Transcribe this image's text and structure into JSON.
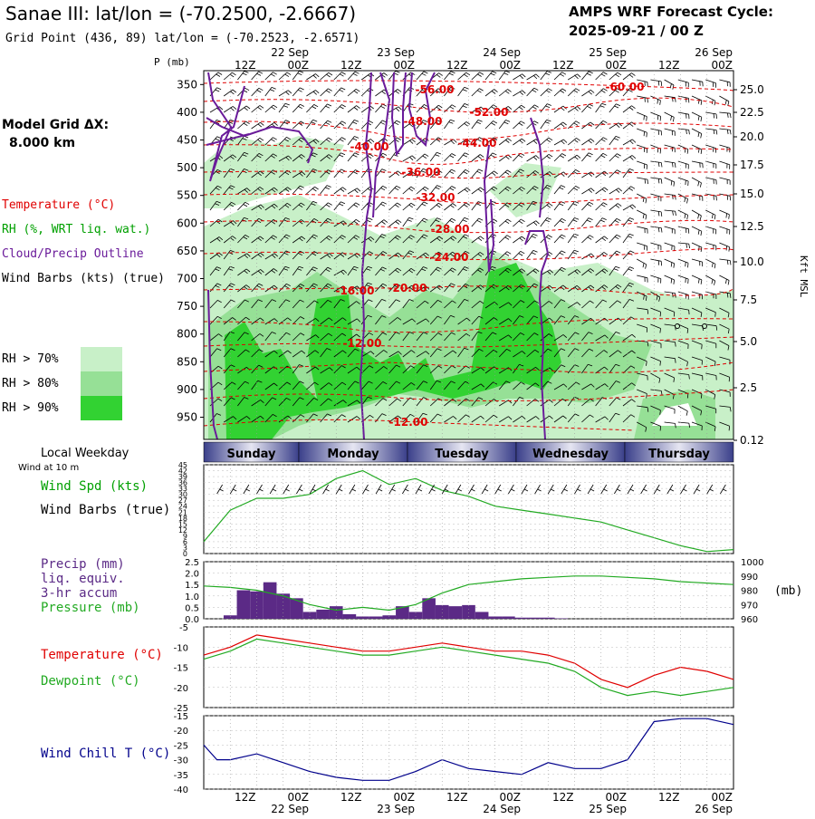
{
  "header": {
    "title": "Sanae III:  lat/lon = (-70.2500, -2.6667)",
    "subtitle": "Grid Point (436, 89) lat/lon = (-70.2523, -2.6571)",
    "cycle_label": "AMPS WRF Forecast Cycle:",
    "cycle_value": "2025-09-21 / 00  Z"
  },
  "legend": {
    "p_unit": "P (mb)",
    "model_grid_1": "Model Grid ΔX:",
    "model_grid_2": "8.000 km",
    "temperature": "Temperature (°C)",
    "rh": "RH (%, WRT liq. wat.)",
    "cloud": "Cloud/Precip Outline",
    "wind_barbs": "Wind Barbs (kts) (true)",
    "rh70": "RH > 70%",
    "rh80": "RH > 80%",
    "rh90": "RH > 90%",
    "kft": "Kft MSL",
    "local_weekday": "Local Weekday",
    "wind10m": "Wind at 10 m",
    "wind_spd": "Wind Spd (kts)",
    "wind_barbs2": "Wind Barbs (true)",
    "precip1": "Precip (mm)",
    "precip2": "liq. equiv.",
    "precip3": "3-hr accum",
    "pressure": "Pressure (mb)",
    "pressure_unit": "(mb)",
    "temp2": "Temperature (°C)",
    "dewpoint": "Dewpoint (°C)",
    "windchill": "Wind Chill T (°C)"
  },
  "colors": {
    "temperature": "#e00000",
    "rh": "#00a000",
    "cloud": "#6a1b9a",
    "precip": "#5b2a86",
    "pressure": "#22aa22",
    "windchill": "#00008b",
    "rh70": "#c8f0c8",
    "rh80": "#96e096",
    "rh90": "#32d232",
    "weekday_dark": "#3a3f8a",
    "weekday_light": "#e6e6f2"
  },
  "time_axis": {
    "top_hours": [
      "12Z",
      "00Z",
      "12Z",
      "00Z",
      "12Z",
      "00Z",
      "12Z",
      "00Z",
      "12Z",
      "00Z"
    ],
    "top_dates": [
      "22 Sep",
      "23 Sep",
      "24 Sep",
      "25 Sep",
      "26 Sep"
    ],
    "bottom_hours": [
      "12Z",
      "00Z",
      "12Z",
      "00Z",
      "12Z",
      "00Z",
      "12Z",
      "00Z",
      "12Z",
      "00Z"
    ],
    "bottom_dates": [
      "22 Sep",
      "23 Sep",
      "24 Sep",
      "25 Sep",
      "26 Sep"
    ],
    "weekdays": [
      "Sunday",
      "Monday",
      "Tuesday",
      "Wednesday",
      "Thursday"
    ]
  },
  "chart_data": [
    {
      "type": "heatmap",
      "pressure_ticks": [
        "350",
        "400",
        "450",
        "500",
        "550",
        "600",
        "650",
        "700",
        "750",
        "800",
        "850",
        "900",
        "950"
      ],
      "height_ticks": [
        "25.0",
        "22.5",
        "20.0",
        "17.5",
        "15.0",
        "12.5",
        "10.0",
        "7.5",
        "5.0",
        "2.5",
        "0.12"
      ],
      "temperature_labels": [
        "-56.00",
        "-60.00",
        "-48.00",
        "-52.00",
        "-40.00",
        "-44.00",
        "-36.00",
        "-32.00",
        "-28.00",
        "-24.00",
        "-20.00",
        "-16.00",
        "-12.00",
        "-12.00"
      ]
    },
    {
      "type": "line",
      "name": "wind_speed",
      "y_ticks": [
        "45",
        "42",
        "39",
        "36",
        "33",
        "30",
        "27",
        "24",
        "21",
        "18",
        "15",
        "12",
        "9",
        "6",
        "3",
        "0"
      ],
      "ylim": [
        0,
        45
      ],
      "x_hours": [
        0,
        6,
        12,
        18,
        24,
        30,
        36,
        42,
        48,
        54,
        60,
        66,
        72,
        78,
        84,
        90,
        96,
        102,
        108,
        114,
        120
      ],
      "values": [
        6,
        22,
        28,
        28,
        30,
        38,
        42,
        35,
        38,
        32,
        29,
        24,
        22,
        20,
        18,
        16,
        12,
        8,
        4,
        1,
        2
      ]
    },
    {
      "type": "bar",
      "name": "precip",
      "y_ticks": [
        "2.5",
        "2.0",
        "1.5",
        "1.0",
        "0.5",
        "0.0"
      ],
      "ylim": [
        0,
        2.5
      ],
      "x_hours": [
        6,
        9,
        12,
        15,
        18,
        21,
        24,
        27,
        30,
        33,
        36,
        39,
        42,
        45,
        48,
        51,
        54,
        57,
        60,
        63,
        66,
        69,
        72,
        75,
        78,
        81
      ],
      "values": [
        0.15,
        1.25,
        1.2,
        1.6,
        1.1,
        0.9,
        0.3,
        0.4,
        0.55,
        0.2,
        0.1,
        0.1,
        0.15,
        0.55,
        0.3,
        0.9,
        0.6,
        0.55,
        0.6,
        0.3,
        0.1,
        0.1,
        0.05,
        0.05,
        0.05,
        0.02
      ],
      "pressure_ticks": [
        "1000",
        "990",
        "980",
        "970",
        "960"
      ],
      "pressure_lim": [
        960,
        1000
      ],
      "pressure_hours": [
        0,
        6,
        12,
        18,
        24,
        30,
        36,
        42,
        48,
        54,
        60,
        66,
        72,
        78,
        84,
        90,
        96,
        102,
        108,
        114,
        120
      ],
      "pressure_values": [
        983,
        982,
        980,
        976,
        970,
        966,
        968,
        966,
        970,
        978,
        984,
        986,
        988,
        989,
        990,
        990,
        989,
        988,
        986,
        985,
        984
      ]
    },
    {
      "type": "line",
      "name": "temperature_dewpoint",
      "y_ticks": [
        "-5",
        "-10",
        "-15",
        "-20",
        "-25"
      ],
      "ylim": [
        -25,
        -5
      ],
      "x_hours": [
        0,
        6,
        12,
        18,
        24,
        30,
        36,
        42,
        48,
        54,
        60,
        66,
        72,
        78,
        84,
        90,
        96,
        102,
        108,
        114,
        120
      ],
      "temperature": [
        -12,
        -10,
        -7,
        -8,
        -9,
        -10,
        -11,
        -11,
        -10,
        -9,
        -10,
        -11,
        -11,
        -12,
        -14,
        -18,
        -20,
        -17,
        -15,
        -16,
        -18
      ],
      "dewpoint": [
        -13,
        -11,
        -8,
        -9,
        -10,
        -11,
        -12,
        -12,
        -11,
        -10,
        -11,
        -12,
        -13,
        -14,
        -16,
        -20,
        -22,
        -21,
        -22,
        -21,
        -20
      ]
    },
    {
      "type": "line",
      "name": "wind_chill",
      "y_ticks": [
        "-15",
        "-20",
        "-25",
        "-30",
        "-35",
        "-40"
      ],
      "ylim": [
        -40,
        -15
      ],
      "x_hours": [
        0,
        3,
        6,
        12,
        18,
        24,
        30,
        36,
        42,
        48,
        54,
        60,
        66,
        72,
        78,
        84,
        90,
        96,
        102,
        108,
        114,
        120
      ],
      "values": [
        -25,
        -30,
        -30,
        -28,
        -31,
        -34,
        -36,
        -37,
        -37,
        -34,
        -30,
        -33,
        -34,
        -35,
        -31,
        -33,
        -33,
        -30,
        -17,
        -16,
        -16,
        -18
      ]
    }
  ]
}
